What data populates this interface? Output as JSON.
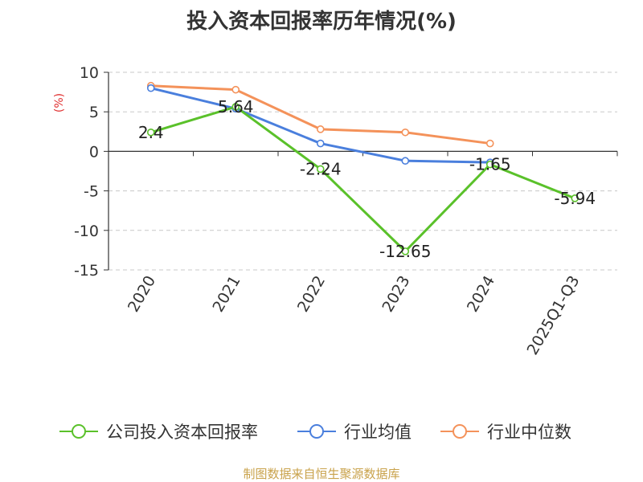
{
  "title": "投入资本回报率历年情况(%)",
  "source": "制图数据来自恒生聚源数据库",
  "chart_data": {
    "type": "line",
    "ylabel": "(%)",
    "ylabel_color": "#e03030",
    "ylim": [
      -15,
      10
    ],
    "yticks": [
      10,
      5,
      0,
      -5,
      -10,
      -15
    ],
    "grid": true,
    "legend_position": "bottom",
    "categories": [
      "2020",
      "2021",
      "2022",
      "2023",
      "2024",
      "2025Q1-Q3"
    ],
    "series": [
      {
        "name": "公司投入资本回报率",
        "color": "#5ac12a",
        "values": [
          2.4,
          5.64,
          -2.24,
          -12.65,
          -1.65,
          -5.94
        ],
        "labels": [
          "2.4",
          "5.64",
          "-2.24",
          "-12.65",
          "-1.65",
          "-5.94"
        ]
      },
      {
        "name": "行业均值",
        "color": "#4a7fdd",
        "values": [
          8.0,
          5.4,
          1.0,
          -1.2,
          -1.4,
          null
        ]
      },
      {
        "name": "行业中位数",
        "color": "#f4925a",
        "values": [
          8.3,
          7.8,
          2.8,
          2.4,
          1.0,
          null
        ]
      }
    ]
  }
}
